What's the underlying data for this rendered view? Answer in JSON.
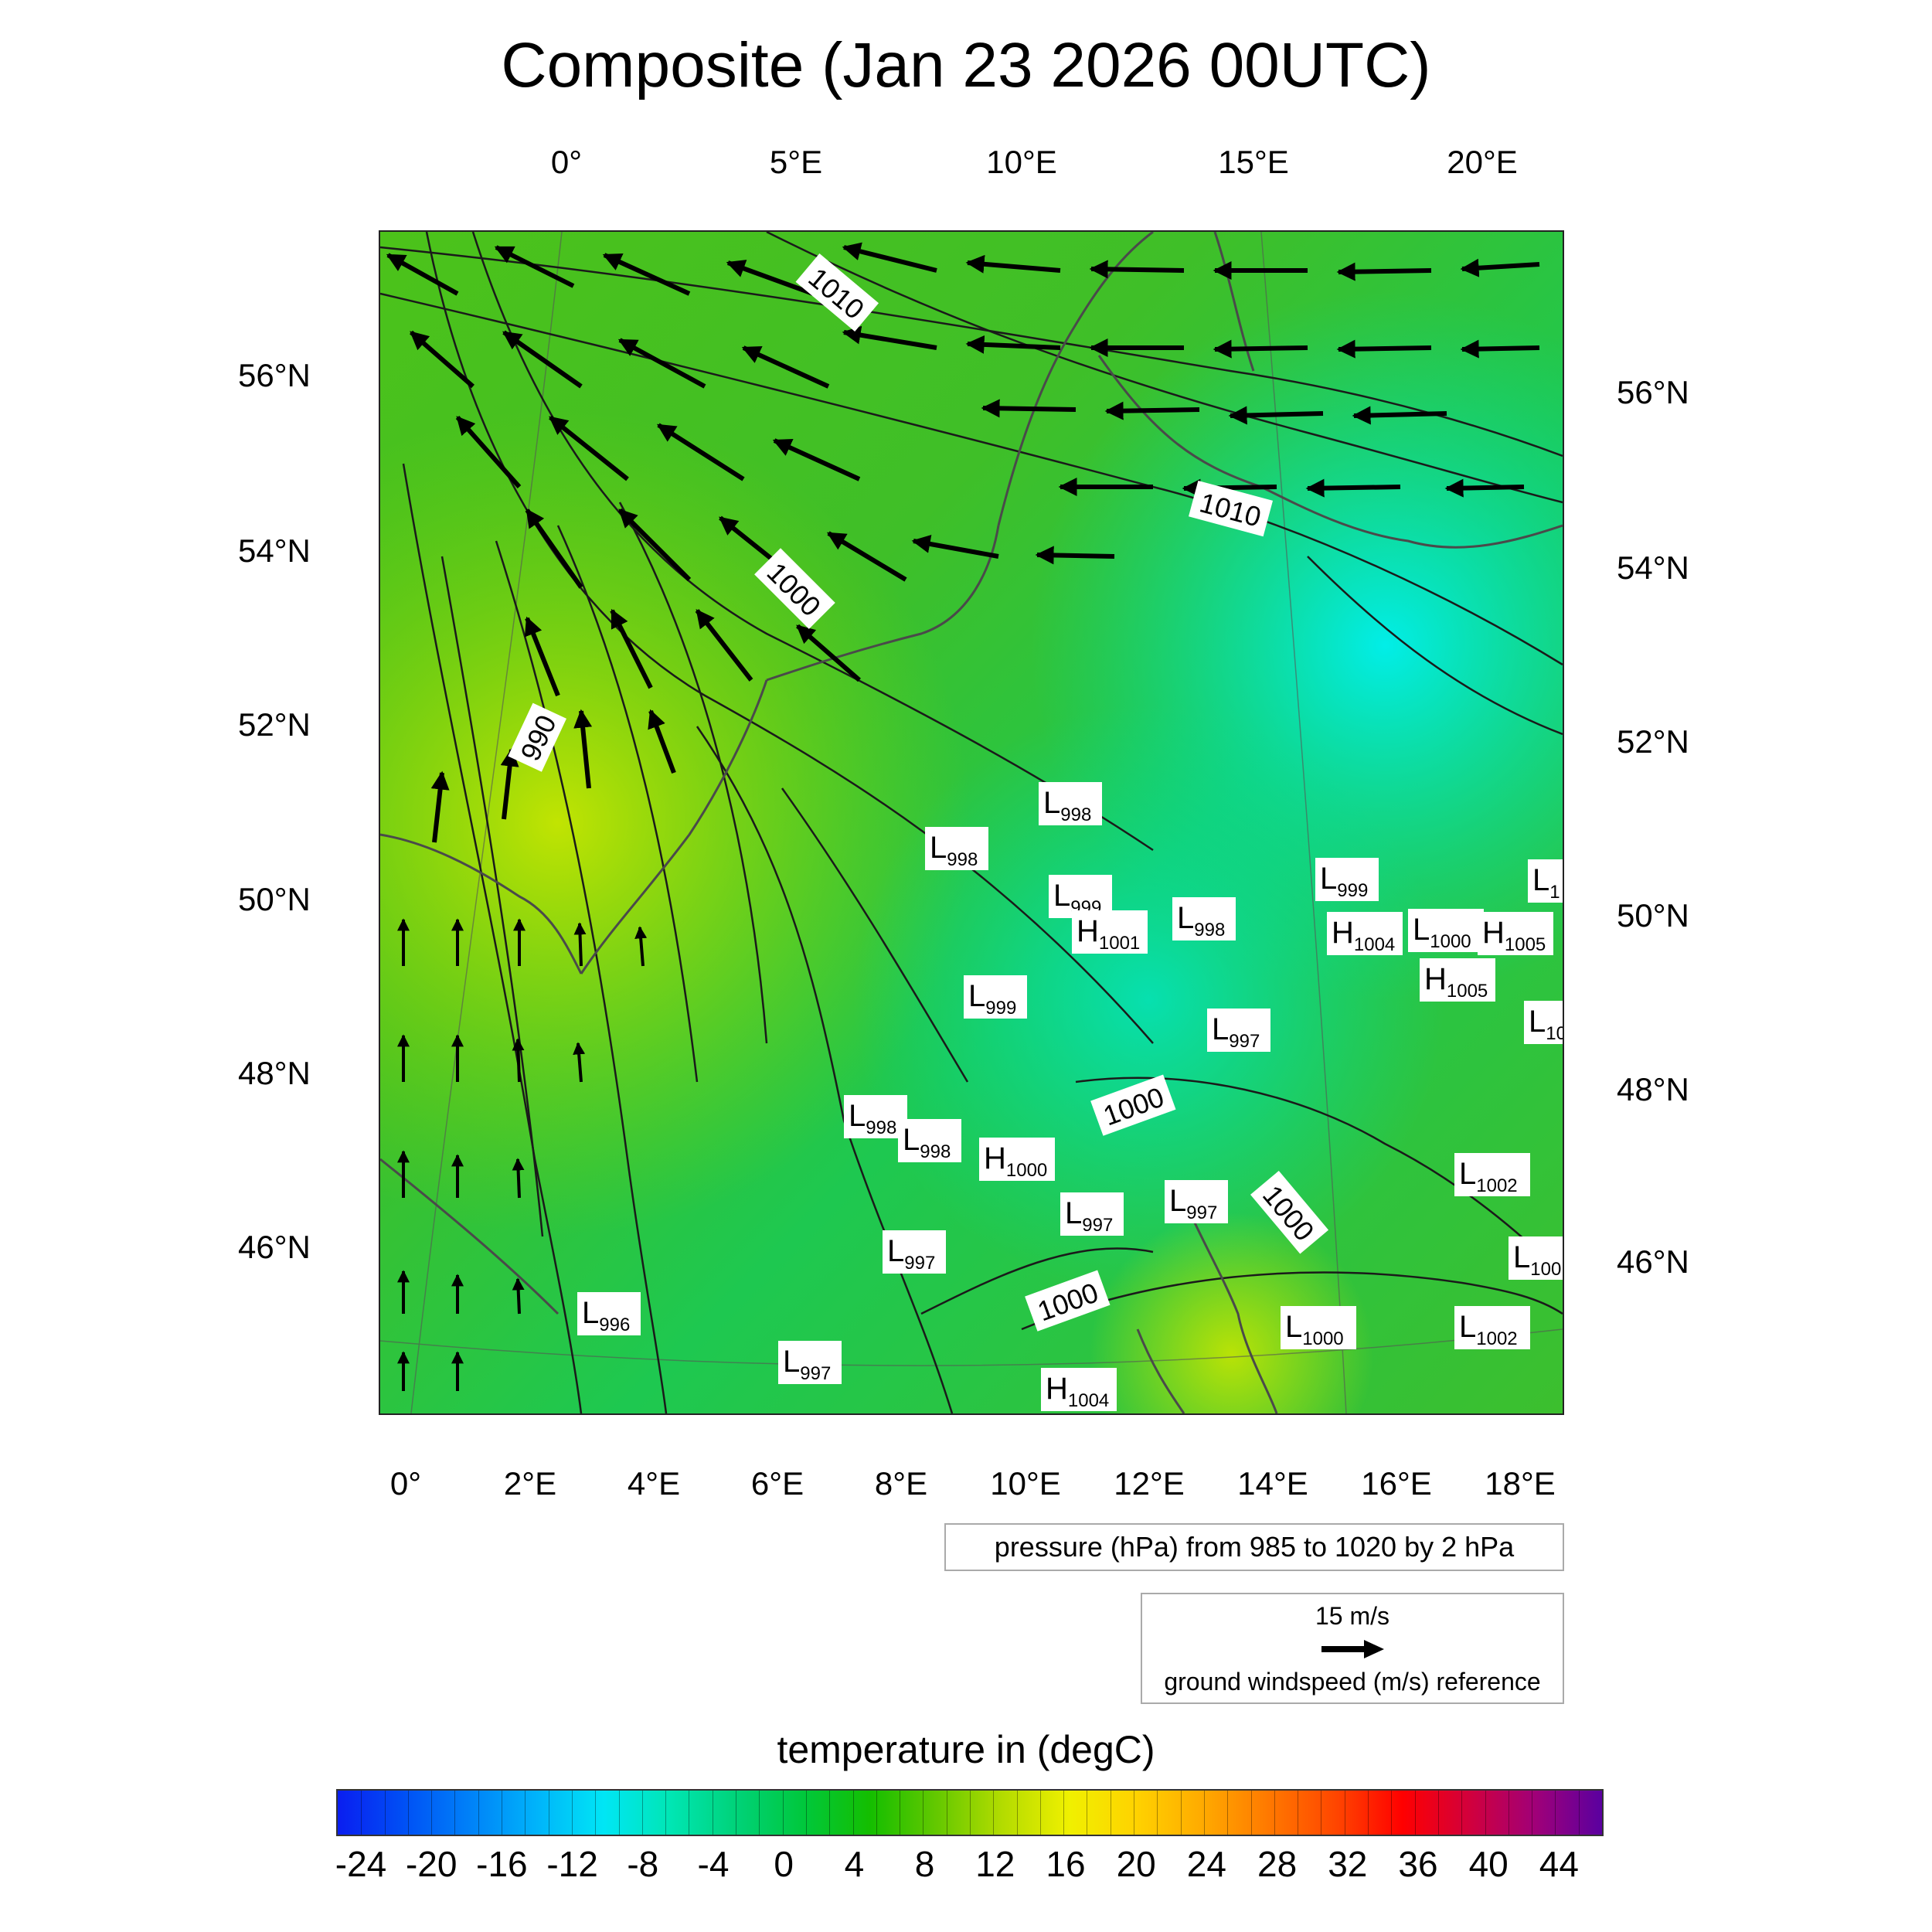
{
  "title": "Composite (Jan 23 2026 00UTC)",
  "top_ticks": [
    "0°",
    "5°E",
    "10°E",
    "15°E",
    "20°E"
  ],
  "bottom_ticks": [
    "0°",
    "2°E",
    "4°E",
    "6°E",
    "8°E",
    "10°E",
    "12°E",
    "14°E",
    "16°E",
    "18°E"
  ],
  "left_ticks": [
    "56°N",
    "54°N",
    "52°N",
    "50°N",
    "48°N",
    "46°N"
  ],
  "right_ticks": [
    "56°N",
    "54°N",
    "52°N",
    "50°N",
    "48°N",
    "46°N"
  ],
  "contour_labels": [
    "1010",
    "1010",
    "1000",
    "990",
    "1000",
    "1000",
    "1000"
  ],
  "pressure_centers": [
    {
      "type": "L",
      "value": "998"
    },
    {
      "type": "L",
      "value": "998"
    },
    {
      "type": "L",
      "value": "999"
    },
    {
      "type": "H",
      "value": "1001"
    },
    {
      "type": "L",
      "value": "998"
    },
    {
      "type": "L",
      "value": "999"
    },
    {
      "type": "L",
      "value": "997"
    },
    {
      "type": "L",
      "value": "999"
    },
    {
      "type": "H",
      "value": "1004"
    },
    {
      "type": "L",
      "value": "1000"
    },
    {
      "type": "H",
      "value": "1005"
    },
    {
      "type": "H",
      "value": "1005"
    },
    {
      "type": "L",
      "value": "1"
    },
    {
      "type": "L",
      "value": "10"
    },
    {
      "type": "L",
      "value": "998"
    },
    {
      "type": "L",
      "value": "998"
    },
    {
      "type": "H",
      "value": "1000"
    },
    {
      "type": "L",
      "value": "997"
    },
    {
      "type": "L",
      "value": "997"
    },
    {
      "type": "L",
      "value": "997"
    },
    {
      "type": "L",
      "value": "996"
    },
    {
      "type": "L",
      "value": "997"
    },
    {
      "type": "H",
      "value": "1004"
    },
    {
      "type": "L",
      "value": "1000"
    },
    {
      "type": "L",
      "value": "1002"
    },
    {
      "type": "L",
      "value": "1002"
    },
    {
      "type": "L",
      "value": "100"
    }
  ],
  "pressure_legend": "pressure (hPa) from 985 to 1020 by 2 hPa",
  "wind_legend": {
    "speed": "15 m/s",
    "label": "ground windspeed (m/s) reference"
  },
  "colorbar": {
    "title": "temperature in (degC)",
    "labels": [
      "-24",
      "-20",
      "-16",
      "-12",
      "-8",
      "-4",
      "0",
      "4",
      "8",
      "12",
      "16",
      "20",
      "24",
      "28",
      "32",
      "36",
      "40",
      "44"
    ],
    "colors": [
      "#0a1ef0",
      "#0050f5",
      "#0082f8",
      "#00b4fa",
      "#00e6f5",
      "#00e6b4",
      "#00d278",
      "#00c83c",
      "#14be00",
      "#64c800",
      "#b4dc00",
      "#f0f000",
      "#ffd200",
      "#ffaa00",
      "#ff7800",
      "#ff4600",
      "#ff0000",
      "#d2003c",
      "#a00078",
      "#5a00a0"
    ]
  }
}
